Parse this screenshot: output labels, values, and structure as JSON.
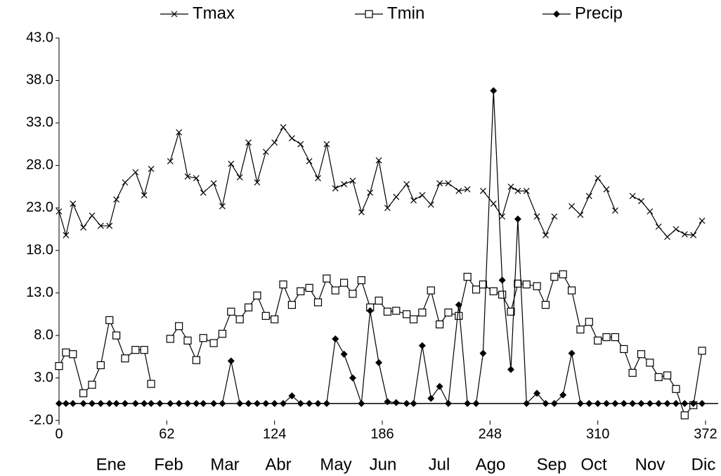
{
  "chart_data": {
    "type": "line",
    "x": [
      0,
      4,
      8,
      14,
      19,
      24,
      29,
      33,
      38,
      44,
      49,
      53,
      58,
      64,
      69,
      74,
      79,
      83,
      89,
      94,
      99,
      104,
      109,
      114,
      119,
      124,
      129,
      134,
      139,
      144,
      149,
      154,
      159,
      164,
      169,
      174,
      179,
      184,
      189,
      194,
      200,
      204,
      209,
      214,
      219,
      224,
      230,
      235,
      240,
      244,
      250,
      255,
      260,
      264,
      269,
      275,
      280,
      285,
      290,
      295,
      300,
      305,
      310,
      315,
      320,
      325,
      330,
      335,
      340,
      345,
      350,
      355,
      360,
      365,
      370
    ],
    "series": [
      {
        "name": "Tmax",
        "color": "#000000",
        "marker": "x",
        "values": [
          22.6,
          19.8,
          23.5,
          20.7,
          22.1,
          20.9,
          20.9,
          24.0,
          26.0,
          27.2,
          24.5,
          27.6,
          null,
          28.5,
          31.9,
          26.7,
          26.5,
          24.8,
          25.9,
          23.2,
          28.2,
          26.6,
          30.7,
          26.0,
          29.6,
          30.7,
          32.5,
          31.2,
          30.5,
          28.5,
          26.5,
          30.5,
          25.3,
          25.8,
          26.2,
          22.5,
          24.8,
          28.6,
          23.0,
          24.3,
          25.8,
          23.9,
          24.5,
          23.4,
          25.9,
          25.9,
          25.0,
          25.2,
          null,
          25.0,
          23.5,
          22.0,
          25.5,
          25.0,
          25.0,
          22.0,
          19.8,
          22.0,
          null,
          23.2,
          22.2,
          24.4,
          26.5,
          25.2,
          22.7,
          null,
          24.4,
          23.8,
          22.6,
          20.8,
          19.6,
          20.5,
          19.9,
          19.8,
          21.5
        ]
      },
      {
        "name": "Tmin",
        "color": "#000000",
        "marker": "square",
        "values": [
          4.4,
          6.0,
          5.8,
          1.2,
          2.2,
          4.5,
          9.8,
          8.0,
          5.3,
          6.3,
          6.3,
          2.3,
          null,
          7.6,
          9.1,
          7.4,
          5.1,
          7.7,
          7.1,
          8.2,
          10.8,
          9.9,
          11.3,
          12.7,
          10.3,
          9.9,
          14.0,
          11.6,
          13.2,
          13.6,
          11.9,
          14.7,
          13.3,
          14.2,
          12.9,
          14.5,
          11.3,
          12.1,
          10.8,
          10.9,
          10.5,
          9.9,
          10.7,
          13.3,
          9.3,
          10.7,
          10.3,
          14.9,
          13.4,
          14.0,
          13.2,
          12.8,
          10.8,
          14.1,
          14.0,
          13.8,
          11.6,
          14.9,
          15.2,
          13.3,
          8.7,
          9.6,
          7.4,
          7.8,
          7.8,
          6.4,
          3.6,
          5.8,
          4.8,
          3.1,
          3.3,
          1.7,
          -1.4,
          -0.2,
          6.2
        ]
      },
      {
        "name": "Precip",
        "color": "#000000",
        "marker": "diamond",
        "values": [
          0,
          0,
          0,
          0,
          0,
          0,
          0,
          0,
          0,
          0,
          0,
          0,
          0,
          0,
          0,
          0,
          0,
          0,
          0,
          0,
          5.0,
          0,
          0,
          0,
          0,
          0,
          0,
          0.9,
          0,
          0,
          0,
          0,
          7.6,
          5.8,
          3.0,
          0,
          10.9,
          4.8,
          0.2,
          0.1,
          0,
          0,
          6.8,
          0.6,
          2.0,
          0,
          11.6,
          0,
          0,
          5.9,
          36.8,
          14.5,
          4.0,
          21.7,
          0,
          1.2,
          0,
          0,
          1.0,
          5.9,
          0,
          0,
          0,
          0,
          0,
          0,
          0,
          0,
          0,
          0,
          0,
          0,
          0,
          0,
          0
        ]
      }
    ],
    "xlim": [
      0,
      372
    ],
    "xticks": [
      0,
      62,
      124,
      186,
      248,
      310,
      372
    ],
    "ylim": [
      -2,
      43
    ],
    "yticks": [
      {
        "value": -2,
        "label": "-2.0"
      },
      {
        "value": 3,
        "label": "3.0"
      },
      {
        "value": 8,
        "label": "8.0"
      },
      {
        "value": 13,
        "label": "13.0"
      },
      {
        "value": 18,
        "label": "18.0"
      },
      {
        "value": 23,
        "label": "23.0"
      },
      {
        "value": 28,
        "label": "28.0"
      },
      {
        "value": 33,
        "label": "33.0"
      },
      {
        "value": 38,
        "label": "38.0"
      },
      {
        "value": 43,
        "label": "43.0"
      }
    ],
    "month_labels": [
      "Ene",
      "Feb",
      "Mar",
      "Abr",
      "May",
      "Jun",
      "Jul",
      "Ago",
      "Sep",
      "Oct",
      "Nov",
      "Dic"
    ],
    "legend": "top"
  }
}
